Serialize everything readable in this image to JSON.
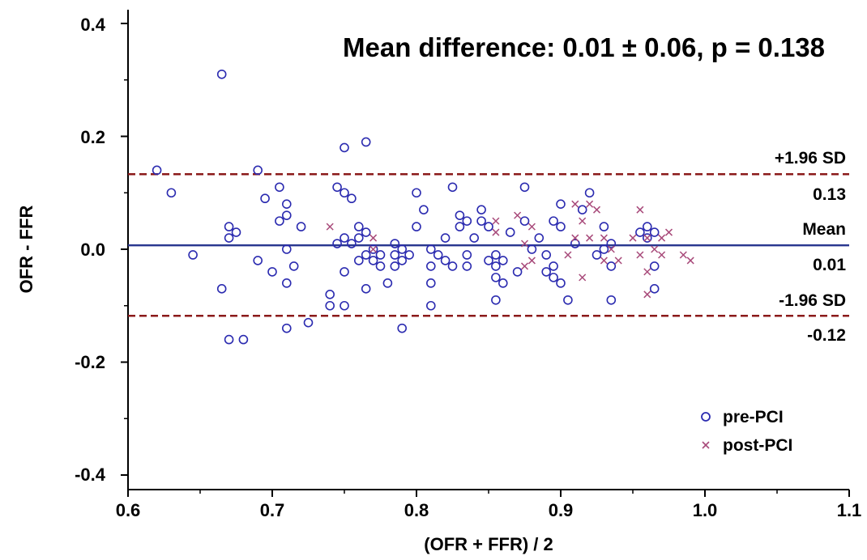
{
  "chart_data": {
    "type": "scatter",
    "title": "Mean difference: 0.01 ± 0.06, p = 0.138",
    "xlabel": "(OFR + FFR) / 2",
    "ylabel": "OFR - FFR",
    "xlim": [
      0.6,
      1.1
    ],
    "ylim": [
      -0.42,
      0.42
    ],
    "x_ticks": [
      "0.6",
      "0.7",
      "0.8",
      "0.9",
      "1.0",
      "1.1"
    ],
    "y_ticks": [
      "0.4",
      "0.2",
      "0.0",
      "-0.2",
      "-0.4"
    ],
    "grid": false,
    "legend_position": "bottom-right",
    "reference_lines": {
      "upper": {
        "label": "+1.96 SD",
        "value_label": "0.13",
        "value": 0.133,
        "style": "dashed",
        "color": "#8b1a1a"
      },
      "mean": {
        "label": "Mean",
        "value_label": "0.01",
        "value": 0.007,
        "style": "solid",
        "color": "#2b3990"
      },
      "lower": {
        "label": "-1.96 SD",
        "value_label": "-0.12",
        "value": -0.118,
        "style": "dashed",
        "color": "#8b1a1a"
      }
    },
    "series": [
      {
        "name": "pre-PCI",
        "marker": "circle",
        "color": "#2b2bb0",
        "points": [
          [
            0.62,
            0.14
          ],
          [
            0.63,
            0.1
          ],
          [
            0.645,
            -0.01
          ],
          [
            0.665,
            0.31
          ],
          [
            0.665,
            -0.07
          ],
          [
            0.67,
            0.04
          ],
          [
            0.67,
            0.02
          ],
          [
            0.67,
            -0.16
          ],
          [
            0.675,
            0.03
          ],
          [
            0.68,
            -0.16
          ],
          [
            0.69,
            0.14
          ],
          [
            0.69,
            -0.02
          ],
          [
            0.695,
            0.09
          ],
          [
            0.7,
            -0.04
          ],
          [
            0.705,
            0.11
          ],
          [
            0.705,
            0.05
          ],
          [
            0.71,
            0.08
          ],
          [
            0.71,
            0.06
          ],
          [
            0.71,
            0.0
          ],
          [
            0.71,
            -0.06
          ],
          [
            0.71,
            -0.14
          ],
          [
            0.715,
            -0.03
          ],
          [
            0.72,
            0.04
          ],
          [
            0.725,
            -0.13
          ],
          [
            0.74,
            -0.08
          ],
          [
            0.74,
            -0.1
          ],
          [
            0.745,
            0.11
          ],
          [
            0.745,
            0.01
          ],
          [
            0.75,
            0.18
          ],
          [
            0.75,
            0.1
          ],
          [
            0.75,
            0.02
          ],
          [
            0.75,
            -0.04
          ],
          [
            0.75,
            -0.1
          ],
          [
            0.755,
            0.09
          ],
          [
            0.755,
            0.01
          ],
          [
            0.76,
            0.04
          ],
          [
            0.76,
            0.02
          ],
          [
            0.76,
            -0.02
          ],
          [
            0.765,
            0.19
          ],
          [
            0.765,
            0.03
          ],
          [
            0.765,
            -0.01
          ],
          [
            0.765,
            -0.07
          ],
          [
            0.77,
            0.0
          ],
          [
            0.77,
            -0.02
          ],
          [
            0.775,
            -0.01
          ],
          [
            0.775,
            -0.03
          ],
          [
            0.78,
            -0.06
          ],
          [
            0.785,
            0.01
          ],
          [
            0.785,
            -0.01
          ],
          [
            0.785,
            -0.03
          ],
          [
            0.79,
            0.0
          ],
          [
            0.79,
            -0.02
          ],
          [
            0.79,
            -0.14
          ],
          [
            0.795,
            -0.01
          ],
          [
            0.8,
            0.1
          ],
          [
            0.8,
            0.04
          ],
          [
            0.805,
            0.07
          ],
          [
            0.81,
            0.0
          ],
          [
            0.81,
            -0.03
          ],
          [
            0.81,
            -0.06
          ],
          [
            0.81,
            -0.1
          ],
          [
            0.815,
            -0.01
          ],
          [
            0.82,
            0.02
          ],
          [
            0.82,
            -0.02
          ],
          [
            0.825,
            0.11
          ],
          [
            0.825,
            -0.03
          ],
          [
            0.83,
            0.06
          ],
          [
            0.83,
            0.04
          ],
          [
            0.835,
            0.05
          ],
          [
            0.835,
            -0.01
          ],
          [
            0.835,
            -0.03
          ],
          [
            0.84,
            0.02
          ],
          [
            0.845,
            0.07
          ],
          [
            0.845,
            0.05
          ],
          [
            0.85,
            0.04
          ],
          [
            0.85,
            -0.02
          ],
          [
            0.855,
            -0.01
          ],
          [
            0.855,
            -0.03
          ],
          [
            0.855,
            -0.05
          ],
          [
            0.855,
            -0.09
          ],
          [
            0.86,
            -0.02
          ],
          [
            0.86,
            -0.06
          ],
          [
            0.865,
            0.03
          ],
          [
            0.87,
            -0.04
          ],
          [
            0.875,
            0.11
          ],
          [
            0.875,
            0.05
          ],
          [
            0.88,
            0.0
          ],
          [
            0.885,
            0.02
          ],
          [
            0.89,
            -0.01
          ],
          [
            0.89,
            -0.04
          ],
          [
            0.895,
            0.05
          ],
          [
            0.895,
            -0.03
          ],
          [
            0.895,
            -0.05
          ],
          [
            0.9,
            0.08
          ],
          [
            0.9,
            0.04
          ],
          [
            0.9,
            -0.06
          ],
          [
            0.905,
            -0.09
          ],
          [
            0.91,
            0.01
          ],
          [
            0.915,
            0.07
          ],
          [
            0.92,
            0.1
          ],
          [
            0.925,
            -0.01
          ],
          [
            0.93,
            0.04
          ],
          [
            0.93,
            0.0
          ],
          [
            0.935,
            0.01
          ],
          [
            0.935,
            -0.03
          ],
          [
            0.935,
            -0.09
          ],
          [
            0.955,
            0.03
          ],
          [
            0.96,
            0.04
          ],
          [
            0.96,
            0.02
          ],
          [
            0.965,
            0.03
          ],
          [
            0.965,
            -0.03
          ],
          [
            0.965,
            -0.07
          ]
        ]
      },
      {
        "name": "post-PCI",
        "marker": "x",
        "color": "#a84a7a",
        "points": [
          [
            0.74,
            0.04
          ],
          [
            0.77,
            0.02
          ],
          [
            0.77,
            0.0
          ],
          [
            0.855,
            0.05
          ],
          [
            0.855,
            0.03
          ],
          [
            0.87,
            0.06
          ],
          [
            0.875,
            0.01
          ],
          [
            0.875,
            -0.03
          ],
          [
            0.88,
            0.04
          ],
          [
            0.88,
            -0.02
          ],
          [
            0.905,
            -0.01
          ],
          [
            0.91,
            0.08
          ],
          [
            0.91,
            0.02
          ],
          [
            0.915,
            0.05
          ],
          [
            0.915,
            -0.05
          ],
          [
            0.92,
            0.08
          ],
          [
            0.92,
            0.02
          ],
          [
            0.925,
            0.07
          ],
          [
            0.93,
            0.02
          ],
          [
            0.93,
            -0.02
          ],
          [
            0.935,
            0.0
          ],
          [
            0.94,
            -0.02
          ],
          [
            0.95,
            0.02
          ],
          [
            0.955,
            0.07
          ],
          [
            0.955,
            -0.01
          ],
          [
            0.96,
            0.02
          ],
          [
            0.96,
            -0.04
          ],
          [
            0.96,
            -0.08
          ],
          [
            0.965,
            0.0
          ],
          [
            0.97,
            0.02
          ],
          [
            0.97,
            -0.01
          ],
          [
            0.975,
            0.03
          ],
          [
            0.985,
            -0.01
          ],
          [
            0.99,
            -0.02
          ]
        ]
      }
    ]
  }
}
